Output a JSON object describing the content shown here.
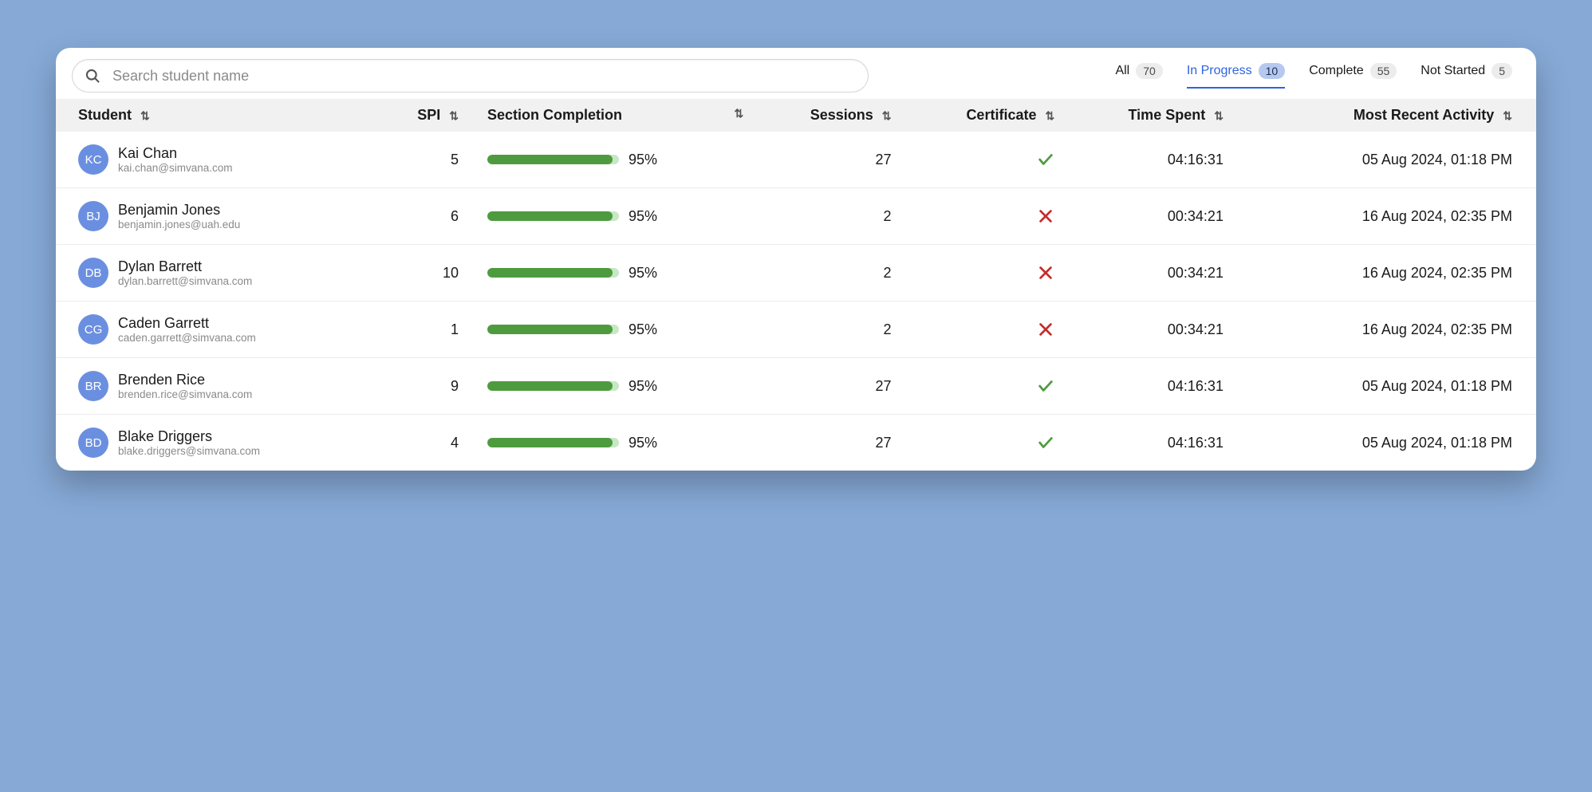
{
  "colors": {
    "page_bg": "#86a9d6",
    "card_bg": "#ffffff",
    "header_bg": "#f1f1f1",
    "row_border": "#ececec",
    "text_primary": "#1a1a1a",
    "text_secondary": "#8a8a8a",
    "accent": "#2f63e0",
    "badge_bg": "#ececec",
    "badge_active_bg": "#b6c8ef",
    "avatar_bg": "#6b8fe0",
    "progress_track": "#c6e8c4",
    "progress_fill": "#4e9b3f",
    "cert_pass": "#4e9b3f",
    "cert_fail": "#c62c2c"
  },
  "search": {
    "placeholder": "Search student name"
  },
  "filters": [
    {
      "label": "All",
      "count": "70",
      "active": false
    },
    {
      "label": "In Progress",
      "count": "10",
      "active": true
    },
    {
      "label": "Complete",
      "count": "55",
      "active": false
    },
    {
      "label": "Not Started",
      "count": "5",
      "active": false
    }
  ],
  "columns": {
    "student": "Student",
    "spi": "SPI",
    "completion": "Section Completion",
    "sessions": "Sessions",
    "certificate": "Certificate",
    "time_spent": "Time Spent",
    "most_recent": "Most Recent Activity"
  },
  "rows": [
    {
      "initials": "KC",
      "name": "Kai Chan",
      "email": "kai.chan@simvana.com",
      "spi": "5",
      "completion_pct": 95,
      "completion_label": "95%",
      "sessions": "27",
      "certificate": true,
      "time_spent": "04:16:31",
      "activity": "05 Aug 2024, 01:18 PM"
    },
    {
      "initials": "BJ",
      "name": "Benjamin Jones",
      "email": "benjamin.jones@uah.edu",
      "spi": "6",
      "completion_pct": 95,
      "completion_label": "95%",
      "sessions": "2",
      "certificate": false,
      "time_spent": "00:34:21",
      "activity": "16 Aug 2024, 02:35 PM"
    },
    {
      "initials": "DB",
      "name": "Dylan Barrett",
      "email": "dylan.barrett@simvana.com",
      "spi": "10",
      "completion_pct": 95,
      "completion_label": "95%",
      "sessions": "2",
      "certificate": false,
      "time_spent": "00:34:21",
      "activity": "16 Aug 2024, 02:35 PM"
    },
    {
      "initials": "CG",
      "name": "Caden Garrett",
      "email": "caden.garrett@simvana.com",
      "spi": "1",
      "completion_pct": 95,
      "completion_label": "95%",
      "sessions": "2",
      "certificate": false,
      "time_spent": "00:34:21",
      "activity": "16 Aug 2024, 02:35 PM"
    },
    {
      "initials": "BR",
      "name": "Brenden Rice",
      "email": "brenden.rice@simvana.com",
      "spi": "9",
      "completion_pct": 95,
      "completion_label": "95%",
      "sessions": "27",
      "certificate": true,
      "time_spent": "04:16:31",
      "activity": "05 Aug 2024, 01:18 PM"
    },
    {
      "initials": "BD",
      "name": "Blake Driggers",
      "email": "blake.driggers@simvana.com",
      "spi": "4",
      "completion_pct": 95,
      "completion_label": "95%",
      "sessions": "27",
      "certificate": true,
      "time_spent": "04:16:31",
      "activity": "05 Aug 2024, 01:18 PM"
    }
  ]
}
